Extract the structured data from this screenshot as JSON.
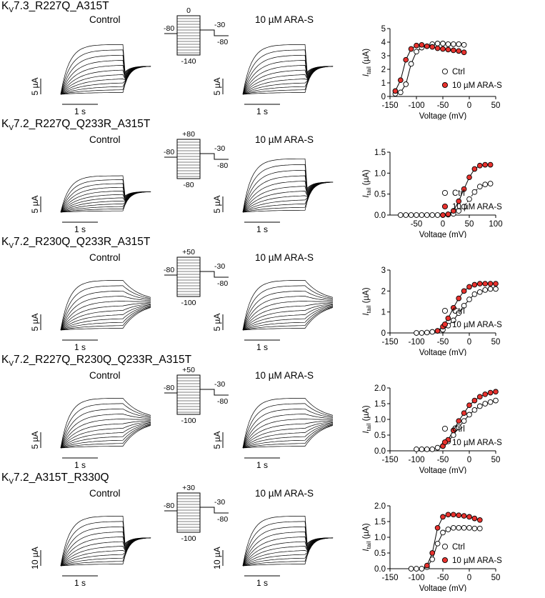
{
  "figure": {
    "rows": [
      {
        "title_main": "K",
        "title_sub": "V",
        "title_rest": "7.3_R227Q_A315T",
        "control_label": "Control",
        "drug_label": "10 µM ARA-S",
        "scale_current": "5 µA",
        "scale_time": "1 s",
        "protocol": {
          "top": "0",
          "hold": "-80",
          "bottom": "-140",
          "tail": "-30",
          "end": "-80"
        }
      },
      {
        "title_main": "K",
        "title_sub": "V",
        "title_rest": "7.2_R227Q_Q233R_A315T",
        "control_label": "Control",
        "drug_label": "10 µM ARA-S",
        "scale_current": "5 µA",
        "scale_time": "1 s",
        "protocol": {
          "top": "+80",
          "hold": "-80",
          "bottom": "-80",
          "tail": "-30",
          "end": "-80"
        }
      },
      {
        "title_main": "K",
        "title_sub": "V",
        "title_rest": "7.2_R230Q_Q233R_A315T",
        "control_label": "Control",
        "drug_label": "10 µM ARA-S",
        "scale_current": "5 µA",
        "scale_time": "1 s",
        "protocol": {
          "top": "+50",
          "hold": "-80",
          "bottom": "-100",
          "tail": "-30",
          "end": "-80"
        }
      },
      {
        "title_main": "K",
        "title_sub": "V",
        "title_rest": "7.2_R227Q_R230Q_Q233R_A315T",
        "control_label": "Control",
        "drug_label": "10 µM ARA-S",
        "scale_current": "5 µA",
        "scale_time": "1 s",
        "protocol": {
          "top": "+50",
          "hold": "-80",
          "bottom": "-100",
          "tail": "-30",
          "end": "-80"
        }
      },
      {
        "title_main": "K",
        "title_sub": "V",
        "title_rest": "7.2_A315T_R330Q",
        "control_label": "Control",
        "drug_label": "10 µM ARA-S",
        "scale_current": "10 µA",
        "scale_time": "1 s",
        "protocol": {
          "top": "+30",
          "hold": "-80",
          "bottom": "-100",
          "tail": "-30",
          "end": "-80"
        }
      }
    ]
  },
  "chart_data": [
    {
      "type": "scatter",
      "ylabel_main": "I",
      "ylabel_sub": "tail",
      "ylabel_unit": " (µA)",
      "xlabel": "Voltage (mV)",
      "xlim": [
        -150,
        50
      ],
      "ylim": [
        0,
        5
      ],
      "xticks": [
        "-150",
        "-100",
        "-50",
        "0",
        "50"
      ],
      "yticks": [
        "0",
        "1",
        "2",
        "3",
        "4",
        "5"
      ],
      "series": [
        {
          "name": "Ctrl",
          "fill": "#ffffff",
          "x": [
            -140,
            -130,
            -120,
            -110,
            -100,
            -90,
            -80,
            -70,
            -60,
            -50,
            -40,
            -30,
            -20,
            -10
          ],
          "y": [
            0.2,
            0.3,
            0.9,
            2.4,
            3.3,
            3.6,
            3.7,
            3.85,
            3.9,
            3.9,
            3.85,
            3.85,
            3.85,
            3.8
          ]
        },
        {
          "name": "10 µM ARA-S",
          "fill": "#e8322e",
          "x": [
            -140,
            -130,
            -120,
            -110,
            -100,
            -90,
            -80,
            -70,
            -60,
            -50,
            -40,
            -30,
            -20,
            -10
          ],
          "y": [
            0.4,
            1.2,
            2.7,
            3.5,
            3.75,
            3.8,
            3.7,
            3.65,
            3.55,
            3.5,
            3.45,
            3.4,
            3.35,
            3.25
          ]
        }
      ]
    },
    {
      "type": "scatter",
      "ylabel_main": "I",
      "ylabel_sub": "tail",
      "ylabel_unit": " (µA)",
      "xlabel": "Voltage (mV)",
      "xlim": [
        -100,
        100
      ],
      "ylim": [
        0,
        1.5
      ],
      "xticks": [
        "-50",
        "0",
        "50",
        "100"
      ],
      "yticks": [
        "0.0",
        "0.5",
        "1.0",
        "1.5"
      ],
      "series": [
        {
          "name": "Ctrl",
          "fill": "#ffffff",
          "x": [
            -80,
            -70,
            -60,
            -50,
            -40,
            -30,
            -20,
            -10,
            0,
            10,
            20,
            30,
            40,
            50,
            60,
            70,
            80,
            90
          ],
          "y": [
            0,
            0,
            0,
            0,
            0,
            0,
            0,
            0,
            0,
            0.01,
            0.03,
            0.1,
            0.2,
            0.38,
            0.55,
            0.68,
            0.73,
            0.75
          ]
        },
        {
          "name": "10 µM ARA-S",
          "fill": "#e8322e",
          "x": [
            0,
            10,
            20,
            30,
            40,
            50,
            60,
            70,
            80,
            90
          ],
          "y": [
            0,
            0.02,
            0.1,
            0.33,
            0.62,
            0.9,
            1.1,
            1.18,
            1.2,
            1.2
          ]
        }
      ]
    },
    {
      "type": "scatter",
      "ylabel_main": "I",
      "ylabel_sub": "tail",
      "ylabel_unit": " (µA)",
      "xlabel": "Voltage (mV)",
      "xlim": [
        -150,
        50
      ],
      "ylim": [
        0,
        3
      ],
      "xticks": [
        "-150",
        "-100",
        "-50",
        "0",
        "50"
      ],
      "yticks": [
        "0",
        "1",
        "2",
        "3"
      ],
      "series": [
        {
          "name": "Ctrl",
          "fill": "#ffffff",
          "x": [
            -100,
            -90,
            -80,
            -70,
            -60,
            -50,
            -40,
            -30,
            -20,
            -10,
            0,
            10,
            20,
            30,
            40,
            50
          ],
          "y": [
            0,
            0,
            0.02,
            0.05,
            0.1,
            0.15,
            0.35,
            0.6,
            0.95,
            1.3,
            1.6,
            1.85,
            1.95,
            2.05,
            2.1,
            2.1
          ]
        },
        {
          "name": "10 µM ARA-S",
          "fill": "#e8322e",
          "x": [
            -60,
            -50,
            -40,
            -30,
            -20,
            -10,
            0,
            10,
            20,
            30,
            40,
            50
          ],
          "y": [
            0.1,
            0.3,
            0.7,
            1.2,
            1.65,
            2.0,
            2.2,
            2.3,
            2.35,
            2.35,
            2.35,
            2.35
          ]
        }
      ]
    },
    {
      "type": "scatter",
      "ylabel_main": "I",
      "ylabel_sub": "tail",
      "ylabel_unit": " (µA)",
      "xlabel": "Voltage (mV)",
      "xlim": [
        -150,
        50
      ],
      "ylim": [
        0,
        2.0
      ],
      "xticks": [
        "-150",
        "-100",
        "-50",
        "0",
        "50"
      ],
      "yticks": [
        "0.0",
        "0.5",
        "1.0",
        "1.5",
        "2.0"
      ],
      "series": [
        {
          "name": "Ctrl",
          "fill": "#ffffff",
          "x": [
            -100,
            -90,
            -80,
            -70,
            -60,
            -50,
            -40,
            -30,
            -20,
            -10,
            0,
            10,
            20,
            30,
            40,
            50
          ],
          "y": [
            0.05,
            0.05,
            0.05,
            0.05,
            0.1,
            0.15,
            0.3,
            0.5,
            0.75,
            0.95,
            1.15,
            1.3,
            1.42,
            1.5,
            1.55,
            1.6
          ]
        },
        {
          "name": "10 µM ARA-S",
          "fill": "#e8322e",
          "x": [
            -50,
            -40,
            -30,
            -20,
            -10,
            0,
            10,
            20,
            30,
            40,
            50
          ],
          "y": [
            0.15,
            0.35,
            0.65,
            0.95,
            1.2,
            1.45,
            1.6,
            1.72,
            1.8,
            1.85,
            1.88
          ]
        }
      ]
    },
    {
      "type": "scatter",
      "ylabel_main": "I",
      "ylabel_sub": "tail",
      "ylabel_unit": " (µA)",
      "xlabel": "Voltage (mV)",
      "xlim": [
        -150,
        50
      ],
      "ylim": [
        0,
        2.0
      ],
      "xticks": [
        "-150",
        "-100",
        "-50",
        "0",
        "50"
      ],
      "yticks": [
        "0.0",
        "0.5",
        "1.0",
        "1.5",
        "2.0"
      ],
      "series": [
        {
          "name": "Ctrl",
          "fill": "#ffffff",
          "x": [
            -110,
            -100,
            -90,
            -80,
            -70,
            -60,
            -50,
            -40,
            -30,
            -20,
            -10,
            0,
            10,
            20
          ],
          "y": [
            0,
            0,
            0,
            0.05,
            0.3,
            0.8,
            1.15,
            1.25,
            1.3,
            1.3,
            1.3,
            1.3,
            1.28,
            1.28
          ]
        },
        {
          "name": "10 µM ARA-S",
          "fill": "#e8322e",
          "x": [
            -80,
            -70,
            -60,
            -50,
            -40,
            -30,
            -20,
            -10,
            0,
            10,
            20
          ],
          "y": [
            0.1,
            0.5,
            1.3,
            1.65,
            1.72,
            1.72,
            1.7,
            1.68,
            1.65,
            1.6,
            1.55
          ]
        }
      ]
    }
  ]
}
